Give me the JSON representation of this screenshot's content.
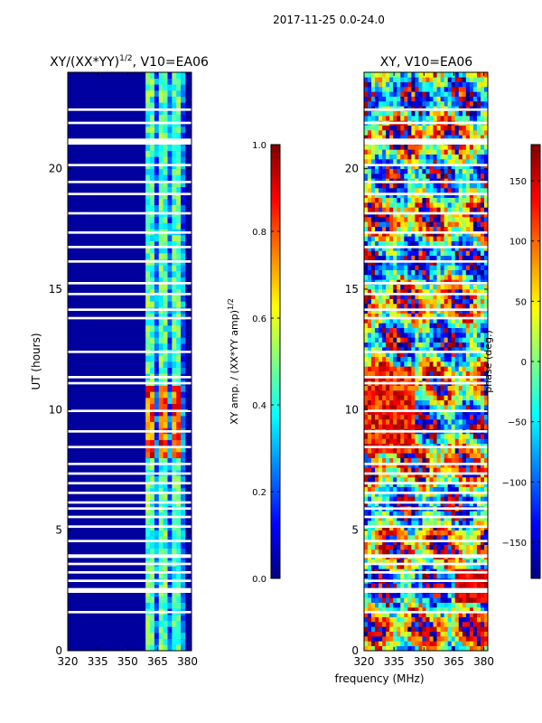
{
  "figure_title": "2017-11-25 0.0-24.0",
  "shared_xlabel": "frequency (MHz)",
  "colors": {
    "jet": [
      "#00007f",
      "#0000ff",
      "#007fff",
      "#00ffff",
      "#7fff7f",
      "#ffff00",
      "#ff7f00",
      "#ff0000",
      "#7f0000"
    ],
    "flag": "#ffffff",
    "axis": "#000000"
  },
  "chart_data": [
    {
      "type": "heatmap",
      "title_main": "XY/(XX*YY)",
      "title_sup": "1/2",
      "title_rest": ", V10=EA06",
      "xlabel": "",
      "ylabel": "UT (hours)",
      "xlim": [
        320,
        382
      ],
      "ylim": [
        0,
        24
      ],
      "xticks": [
        320,
        335,
        350,
        365,
        380
      ],
      "yticks": [
        0,
        5,
        10,
        15,
        20
      ],
      "colorbar": {
        "label": "XY amp. / (XX*YY amp)",
        "label_sup": "1/2",
        "range": [
          0.0,
          1.0
        ],
        "ticks": [
          "0.0",
          "0.2",
          "0.4",
          "0.6",
          "0.8",
          "1.0"
        ],
        "tick_values": [
          0.0,
          0.2,
          0.4,
          0.6,
          0.8,
          1.0
        ]
      },
      "features": {
        "low_band_mhz": [
          320,
          359
        ],
        "low_band_level": 0.03,
        "bright_band_mhz": [
          359,
          378
        ],
        "bright_band_level": 0.45,
        "hot_hours": [
          8,
          11
        ],
        "hot_level": 0.8
      }
    },
    {
      "type": "heatmap",
      "title_main": "XY, V10=EA06",
      "xlabel": "frequency (MHz)",
      "ylabel": "",
      "xlim": [
        320,
        382
      ],
      "ylim": [
        0,
        24
      ],
      "xticks": [
        320,
        335,
        350,
        365,
        380
      ],
      "yticks": [
        0,
        5,
        10,
        15,
        20
      ],
      "colorbar": {
        "label": "phase (deg.)",
        "range": [
          -180,
          180
        ],
        "ticks": [
          "−150",
          "−100",
          "−50",
          "0",
          "50",
          "100",
          "150"
        ],
        "tick_values": [
          -150,
          -100,
          -50,
          0,
          50,
          100,
          150
        ]
      }
    }
  ],
  "flagged_hours": [
    [
      1.55,
      1.65
    ],
    [
      2.4,
      2.6
    ],
    [
      2.85,
      2.95
    ],
    [
      3.2,
      3.3
    ],
    [
      3.55,
      3.65
    ],
    [
      3.85,
      4.0
    ],
    [
      4.5,
      4.6
    ],
    [
      5.1,
      5.2
    ],
    [
      5.5,
      5.6
    ],
    [
      5.85,
      5.95
    ],
    [
      6.1,
      6.2
    ],
    [
      6.5,
      6.6
    ],
    [
      6.9,
      7.0
    ],
    [
      7.3,
      7.4
    ],
    [
      7.7,
      7.8
    ],
    [
      8.4,
      8.5
    ],
    [
      9.05,
      9.15
    ],
    [
      9.9,
      10.0
    ],
    [
      11.05,
      11.15
    ],
    [
      11.3,
      11.4
    ],
    [
      12.35,
      12.45
    ],
    [
      13.75,
      13.85
    ],
    [
      14.1,
      14.2
    ],
    [
      14.75,
      14.85
    ],
    [
      15.2,
      15.3
    ],
    [
      16.1,
      16.2
    ],
    [
      16.7,
      16.8
    ],
    [
      17.3,
      17.4
    ],
    [
      18.1,
      18.2
    ],
    [
      18.9,
      19.0
    ],
    [
      19.4,
      19.5
    ],
    [
      20.1,
      20.2
    ],
    [
      21.0,
      21.25
    ],
    [
      21.85,
      21.95
    ],
    [
      22.4,
      22.5
    ]
  ]
}
